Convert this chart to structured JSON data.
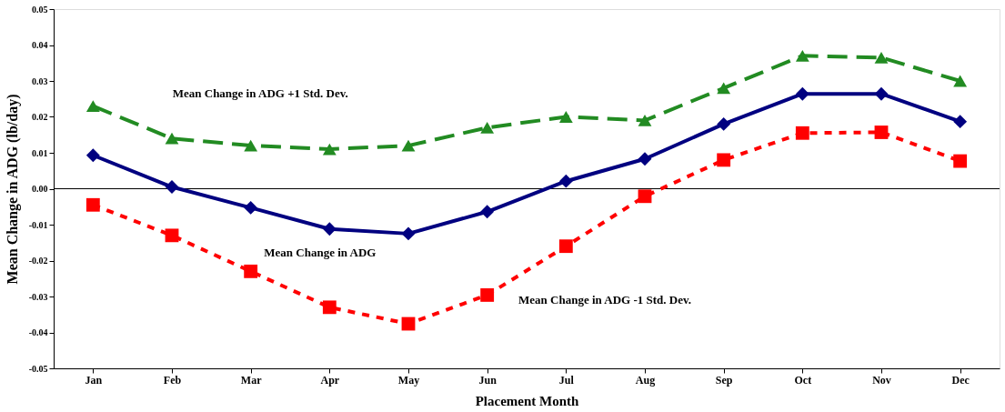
{
  "chart_data": {
    "type": "line",
    "xlabel": "Placement Month",
    "ylabel": "Mean Change in ADG (lb/day)",
    "categories": [
      "Jan",
      "Feb",
      "Mar",
      "Apr",
      "May",
      "Jun",
      "Jul",
      "Aug",
      "Sep",
      "Oct",
      "Nov",
      "Dec"
    ],
    "series": [
      {
        "color": "#228b22",
        "marker": "triangle",
        "line_style": "dashed",
        "values": [
          0.023,
          0.014,
          0.012,
          0.011,
          0.012,
          0.017,
          0.02,
          0.019,
          0.028,
          0.037,
          0.0365,
          0.03
        ]
      },
      {
        "color": "#000080",
        "marker": "diamond",
        "line_style": "solid",
        "values": [
          0.0093,
          0.0005,
          -0.0053,
          -0.0112,
          -0.0125,
          -0.0064,
          0.0021,
          0.0083,
          0.018,
          0.0264,
          0.0264,
          0.0187
        ]
      },
      {
        "color": "#ff0000",
        "marker": "square",
        "line_style": "dotted",
        "values": [
          -0.0045,
          -0.013,
          -0.023,
          -0.033,
          -0.0376,
          -0.0296,
          -0.016,
          -0.0021,
          0.008,
          0.0155,
          0.0157,
          0.0077
        ]
      }
    ],
    "ylim": [
      -0.05,
      0.05
    ],
    "yticks": [
      {
        "value": -0.05,
        "label": "-0.05"
      },
      {
        "value": -0.04,
        "label": "-0.04"
      },
      {
        "value": -0.03,
        "label": "-0.03"
      },
      {
        "value": -0.02,
        "label": "-0.02"
      },
      {
        "value": -0.01,
        "label": "-0.01"
      },
      {
        "value": 0,
        "label": "0.00"
      },
      {
        "value": 0.01,
        "label": "0.01"
      },
      {
        "value": 0.02,
        "label": "0.02"
      },
      {
        "value": 0.03,
        "label": "0.03"
      },
      {
        "value": 0.04,
        "label": "0.04"
      },
      {
        "value": 0.05,
        "label": "0.05"
      }
    ],
    "ref_lines": [
      {
        "axis": "y",
        "value": 0,
        "color": "#000000"
      }
    ],
    "annotations": [
      "Mean Change in ADG +1 Std. Dev.",
      "Mean Change in ADG",
      "Mean Change in ADG -1 Std. Dev."
    ],
    "grid": false
  }
}
